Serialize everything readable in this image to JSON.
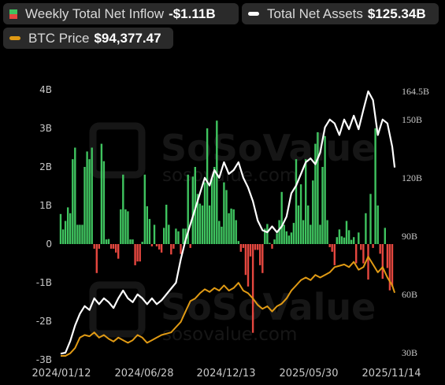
{
  "legend": {
    "inflow_label": "Weekly Total Net Inflow",
    "inflow_value": "-$1.11B",
    "assets_label": "Total Net Assets",
    "assets_value": "$125.34B",
    "btc_label": "BTC Price",
    "btc_value": "$94,377.47"
  },
  "watermark": {
    "brand": "SoSoValue",
    "url": "sosovalue.com"
  },
  "colors": {
    "positive": "#3fc35f",
    "negative": "#e5473f",
    "assets": "#ffffff",
    "btc": "#e09a14",
    "background": "#000000"
  },
  "chart_data": {
    "type": "bar",
    "x_tick_labels": [
      "2024/01/12",
      "2024/06/28",
      "2024/12/13",
      "2025/05/30",
      "2025/11/14"
    ],
    "y_left_ticks": [
      "4B",
      "3B",
      "2B",
      "1B",
      "0",
      "-1B",
      "-2B",
      "-3B"
    ],
    "y_left_range": [
      -3,
      4
    ],
    "y_right_ticks": [
      "164.5B",
      "150B",
      "120B",
      "90B",
      "60B",
      "30B"
    ],
    "y_right_range": [
      30,
      164.5
    ],
    "series": [
      {
        "name": "Weekly Total Net Inflow",
        "unit": "B USD",
        "values": [
          0.78,
          0.38,
          0.6,
          0.95,
          0.8,
          2.2,
          2.5,
          0.5,
          0.5,
          0.5,
          2.0,
          2.4,
          2.2,
          2.5,
          -0.12,
          -0.75,
          -0.12,
          2.6,
          2.15,
          0.12,
          0.13,
          -0.12,
          -0.12,
          -0.22,
          -0.38,
          0.9,
          1.8,
          0.9,
          0.85,
          0.12,
          0.12,
          -0.55,
          -0.45,
          -0.45,
          0.06,
          1.8,
          0.98,
          0.65,
          -0.06,
          0.5,
          -0.06,
          -0.14,
          -0.22,
          0.42,
          1.02,
          0.5,
          -0.27,
          -0.12,
          0.4,
          0.33,
          -0.26,
          0.4,
          0.4,
          1.8,
          -0.1,
          1.75,
          2.0,
          1.3,
          1.05,
          1.0,
          1.6,
          3.0,
          1.0,
          1.7,
          2.0,
          3.2,
          0.6,
          0.45,
          1.6,
          1.4,
          0.8,
          0.92,
          0.9,
          0.62,
          0.08,
          -0.2,
          -0.1,
          -0.8,
          -1.1,
          -0.32,
          -2.3,
          -0.15,
          -0.15,
          -0.55,
          -0.75,
          0.4,
          0.52,
          0.03,
          -0.12,
          0.12,
          0.28,
          0.62,
          1.35,
          0.5,
          0.33,
          0.22,
          0.3,
          0.55,
          2.2,
          1.0,
          1.55,
          0.62,
          2.2,
          1.0,
          0.5,
          1.65,
          2.6,
          2.9,
          0.5,
          2.0,
          2.8,
          0.62,
          -0.08,
          -0.2,
          -0.55,
          0.18,
          0.38,
          0.2,
          0.17,
          0.6,
          0.36,
          0.11,
          0.18,
          -0.5,
          0.3,
          -0.15,
          -0.5,
          0.8,
          -0.92,
          1.3,
          -0.1,
          3.0,
          1.0,
          -0.25,
          -0.9,
          0.42,
          -0.62,
          -1.2,
          -1.1
        ]
      },
      {
        "name": "Total Net Assets",
        "unit": "B USD",
        "points": [
          [
            0,
            29.5
          ],
          [
            2,
            30
          ],
          [
            4,
            36
          ],
          [
            6,
            44
          ],
          [
            8,
            50
          ],
          [
            10,
            54
          ],
          [
            12,
            52
          ],
          [
            14,
            58
          ],
          [
            16,
            55
          ],
          [
            18,
            58
          ],
          [
            20,
            56
          ],
          [
            22,
            53
          ],
          [
            24,
            58
          ],
          [
            26,
            62
          ],
          [
            28,
            58
          ],
          [
            30,
            56
          ],
          [
            32,
            60
          ],
          [
            34,
            58
          ],
          [
            36,
            55
          ],
          [
            38,
            58
          ],
          [
            40,
            55
          ],
          [
            42,
            57
          ],
          [
            44,
            60
          ],
          [
            46,
            63
          ],
          [
            48,
            66
          ],
          [
            50,
            78
          ],
          [
            52,
            88
          ],
          [
            54,
            96
          ],
          [
            56,
            104
          ],
          [
            58,
            112
          ],
          [
            60,
            120
          ],
          [
            62,
            116
          ],
          [
            64,
            124
          ],
          [
            66,
            120
          ],
          [
            68,
            128
          ],
          [
            70,
            122
          ],
          [
            72,
            124
          ],
          [
            74,
            128
          ],
          [
            76,
            120
          ],
          [
            78,
            115
          ],
          [
            80,
            108
          ],
          [
            82,
            98
          ],
          [
            84,
            93
          ],
          [
            86,
            92
          ],
          [
            88,
            95
          ],
          [
            90,
            92
          ],
          [
            92,
            95
          ],
          [
            94,
            100
          ],
          [
            96,
            112
          ],
          [
            98,
            116
          ],
          [
            100,
            122
          ],
          [
            102,
            128
          ],
          [
            104,
            130
          ],
          [
            106,
            127
          ],
          [
            108,
            133
          ],
          [
            110,
            146
          ],
          [
            112,
            150
          ],
          [
            114,
            148
          ],
          [
            116,
            142
          ],
          [
            118,
            150
          ],
          [
            120,
            145
          ],
          [
            122,
            152
          ],
          [
            124,
            145
          ],
          [
            126,
            155
          ],
          [
            128,
            164.5
          ],
          [
            130,
            160
          ],
          [
            132,
            142
          ],
          [
            134,
            150
          ],
          [
            136,
            148
          ],
          [
            138,
            136
          ],
          [
            139,
            125.34
          ]
        ]
      },
      {
        "name": "BTC Price",
        "unit": "USD",
        "points": [
          [
            0,
            46000
          ],
          [
            2,
            46000
          ],
          [
            4,
            48000
          ],
          [
            6,
            52000
          ],
          [
            8,
            60000
          ],
          [
            10,
            62000
          ],
          [
            12,
            61000
          ],
          [
            14,
            64000
          ],
          [
            16,
            60000
          ],
          [
            18,
            62000
          ],
          [
            20,
            59000
          ],
          [
            22,
            57000
          ],
          [
            24,
            60000
          ],
          [
            26,
            58000
          ],
          [
            28,
            56000
          ],
          [
            30,
            58000
          ],
          [
            32,
            62000
          ],
          [
            34,
            60000
          ],
          [
            36,
            56000
          ],
          [
            38,
            58000
          ],
          [
            40,
            60000
          ],
          [
            42,
            62000
          ],
          [
            44,
            63000
          ],
          [
            46,
            64000
          ],
          [
            48,
            68000
          ],
          [
            50,
            72000
          ],
          [
            52,
            80000
          ],
          [
            54,
            88000
          ],
          [
            56,
            90000
          ],
          [
            58,
            94000
          ],
          [
            60,
            97000
          ],
          [
            62,
            95000
          ],
          [
            64,
            98000
          ],
          [
            66,
            96000
          ],
          [
            68,
            100000
          ],
          [
            70,
            96000
          ],
          [
            72,
            98000
          ],
          [
            74,
            102000
          ],
          [
            76,
            96000
          ],
          [
            78,
            94000
          ],
          [
            80,
            90000
          ],
          [
            82,
            85000
          ],
          [
            84,
            82000
          ],
          [
            86,
            84000
          ],
          [
            88,
            80000
          ],
          [
            90,
            84000
          ],
          [
            92,
            86000
          ],
          [
            94,
            90000
          ],
          [
            96,
            96000
          ],
          [
            98,
            100000
          ],
          [
            100,
            104000
          ],
          [
            102,
            106000
          ],
          [
            104,
            104000
          ],
          [
            106,
            108000
          ],
          [
            108,
            106000
          ],
          [
            110,
            108000
          ],
          [
            112,
            110000
          ],
          [
            114,
            114000
          ],
          [
            116,
            115000
          ],
          [
            118,
            116000
          ],
          [
            120,
            114000
          ],
          [
            122,
            118000
          ],
          [
            124,
            112000
          ],
          [
            126,
            114000
          ],
          [
            128,
            122000
          ],
          [
            130,
            116000
          ],
          [
            132,
            110000
          ],
          [
            134,
            114000
          ],
          [
            136,
            106000
          ],
          [
            138,
            100000
          ],
          [
            139,
            94377.47
          ]
        ]
      }
    ]
  }
}
